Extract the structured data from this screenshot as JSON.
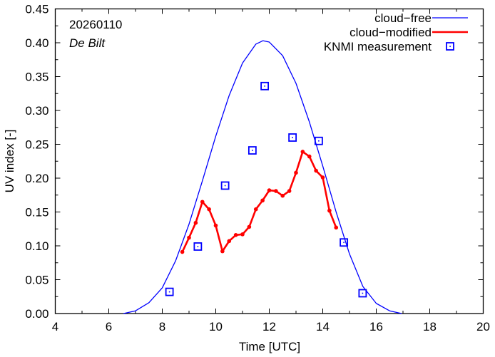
{
  "chart_data": {
    "type": "line",
    "title": "",
    "annotations": [
      "20260110",
      "De Bilt"
    ],
    "xlabel": "Time  [UTC]",
    "ylabel": "UV index  [-]",
    "xlim": [
      4,
      20
    ],
    "ylim": [
      0,
      0.45
    ],
    "xticks": [
      4,
      6,
      8,
      10,
      12,
      14,
      16,
      18,
      20
    ],
    "xtick_labels": [
      "4",
      "6",
      "8",
      "10",
      "12",
      "14",
      "16",
      "18",
      "20"
    ],
    "yticks": [
      0,
      0.05,
      0.1,
      0.15,
      0.2,
      0.25,
      0.3,
      0.35,
      0.4,
      0.45
    ],
    "ytick_labels": [
      "0.00",
      "0.05",
      "0.10",
      "0.15",
      "0.20",
      "0.25",
      "0.30",
      "0.35",
      "0.40",
      "0.45"
    ],
    "grid": false,
    "legend_position": "top-right",
    "series": [
      {
        "name": "cloud−free",
        "style": "line",
        "color": "#0000ff",
        "x": [
          6.55,
          7.0,
          7.5,
          8.0,
          8.5,
          9.0,
          9.5,
          10.0,
          10.5,
          11.0,
          11.5,
          11.76,
          12.0,
          12.5,
          13.0,
          13.5,
          14.0,
          14.5,
          15.0,
          15.5,
          16.0,
          16.5,
          16.95
        ],
        "y": [
          0.0,
          0.004,
          0.016,
          0.038,
          0.078,
          0.132,
          0.196,
          0.262,
          0.322,
          0.37,
          0.398,
          0.403,
          0.401,
          0.381,
          0.34,
          0.283,
          0.218,
          0.15,
          0.088,
          0.04,
          0.015,
          0.004,
          0.0
        ]
      },
      {
        "name": "cloud−modified",
        "style": "line-points",
        "color": "#ff0000",
        "x": [
          8.75,
          9.0,
          9.25,
          9.5,
          9.75,
          10.0,
          10.25,
          10.5,
          10.75,
          11.0,
          11.25,
          11.5,
          11.75,
          12.0,
          12.25,
          12.5,
          12.75,
          13.0,
          13.25,
          13.5,
          13.75,
          14.0,
          14.25,
          14.5
        ],
        "y": [
          0.091,
          0.112,
          0.134,
          0.165,
          0.154,
          0.13,
          0.092,
          0.107,
          0.116,
          0.117,
          0.128,
          0.154,
          0.167,
          0.182,
          0.181,
          0.174,
          0.181,
          0.208,
          0.239,
          0.232,
          0.211,
          0.201,
          0.152,
          0.127
        ]
      },
      {
        "name": "KNMI measurement",
        "style": "markers",
        "color": "#0000ff",
        "x": [
          8.27,
          9.33,
          10.35,
          11.37,
          11.83,
          12.87,
          13.85,
          14.79,
          15.49
        ],
        "y": [
          0.032,
          0.099,
          0.189,
          0.241,
          0.336,
          0.26,
          0.255,
          0.105,
          0.03
        ]
      }
    ]
  }
}
